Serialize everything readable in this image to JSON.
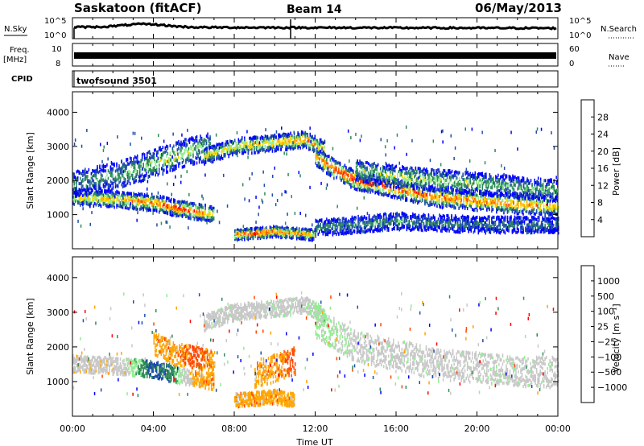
{
  "header": {
    "station": "Saskatoon (fitACF)",
    "beam": "Beam 14",
    "date": "06/May/2013"
  },
  "top_labels": {
    "nsky": "N.Sky",
    "nsearch": "N.Search",
    "freq": "Freq.",
    "mhz": "[MHz]",
    "nave": "Nave",
    "cpid": "CPID",
    "cpid_value": "twofsound 3501",
    "sky_ticks": [
      "10^5",
      "10^0"
    ],
    "freq_ticks": [
      "10",
      "8"
    ],
    "nave_ticks": [
      "60",
      "0"
    ]
  },
  "x_axis": {
    "label": "Time UT",
    "ticks": [
      "00:00",
      "04:00",
      "08:00",
      "12:00",
      "16:00",
      "20:00",
      "00:00"
    ]
  },
  "colors": {
    "power": [
      "#0000ff",
      "#1f4ea8",
      "#2e8b57",
      "#90ee90",
      "#ffd700",
      "#ffa500",
      "#ff4500",
      "#ff0000"
    ],
    "velocity": [
      "#ff0000",
      "#ff4500",
      "#ffa500",
      "#c8c8c8",
      "#c8c8c8",
      "#90ee90",
      "#2e8b57",
      "#1f4ea8",
      "#0000ff"
    ]
  },
  "chart_data": [
    {
      "type": "heatmap",
      "title": "",
      "xlabel": "Time UT",
      "ylabel": "Slant Range [km]",
      "xlim": [
        0,
        24
      ],
      "ylim": [
        0,
        4600
      ],
      "y_ticks": [
        "1000",
        "2000",
        "3000",
        "4000"
      ],
      "y_tick_values": [
        1000,
        2000,
        3000,
        4000
      ],
      "colorbar": {
        "label": "Power [dB]",
        "ticks": [
          "28",
          "24",
          "20",
          "16",
          "12",
          "8",
          "4"
        ],
        "range": [
          0,
          32
        ]
      },
      "bands": [
        {
          "t": [
            0,
            2,
            3,
            4,
            5,
            6,
            7
          ],
          "center": [
            1500,
            1450,
            1400,
            1350,
            1200,
            1100,
            1000
          ],
          "width": 300,
          "intensity": [
            0.5,
            0.6,
            0.7,
            0.75,
            0.85,
            0.8,
            0.5
          ]
        },
        {
          "t": [
            0,
            2,
            4,
            5.5,
            6.8
          ],
          "center": [
            1900,
            2100,
            2500,
            2800,
            3000
          ],
          "width": 500,
          "intensity": [
            0.3,
            0.3,
            0.45,
            0.5,
            0.4
          ]
        },
        {
          "t": [
            6.5,
            8,
            10,
            11.5,
            12.5
          ],
          "center": [
            2700,
            3000,
            3100,
            3200,
            2900
          ],
          "width": 300,
          "intensity": [
            0.5,
            0.55,
            0.6,
            0.75,
            0.55
          ]
        },
        {
          "t": [
            12,
            13,
            14,
            15,
            16,
            18,
            20,
            22,
            24
          ],
          "center": [
            2700,
            2300,
            2000,
            1900,
            1750,
            1500,
            1400,
            1300,
            1250
          ],
          "width": 350,
          "intensity": [
            0.6,
            0.85,
            0.9,
            0.85,
            0.8,
            0.75,
            0.75,
            0.7,
            0.65
          ]
        },
        {
          "t": [
            14,
            16,
            18,
            20,
            22,
            24
          ],
          "center": [
            2300,
            2100,
            2000,
            1900,
            1800,
            1700
          ],
          "width": 400,
          "intensity": [
            0.4,
            0.45,
            0.45,
            0.4,
            0.35,
            0.35
          ]
        },
        {
          "t": [
            8,
            9,
            10,
            11,
            12
          ],
          "center": [
            400,
            450,
            500,
            450,
            400
          ],
          "width": 200,
          "intensity": [
            0.8,
            0.85,
            0.75,
            0.7,
            0.6
          ]
        },
        {
          "t": [
            12,
            16,
            20,
            24
          ],
          "center": [
            600,
            800,
            700,
            700
          ],
          "width": 300,
          "intensity": [
            0.3,
            0.3,
            0.25,
            0.25
          ]
        }
      ]
    },
    {
      "type": "heatmap",
      "title": "",
      "xlabel": "Time UT",
      "ylabel": "Slant Range [km]",
      "xlim": [
        0,
        24
      ],
      "ylim": [
        0,
        4600
      ],
      "y_ticks": [
        "1000",
        "2000",
        "3000",
        "4000"
      ],
      "y_tick_values": [
        1000,
        2000,
        3000,
        4000
      ],
      "colorbar": {
        "label": "Velocity [m s⁻¹]",
        "ticks": [
          "1000",
          "500",
          "100",
          "25",
          "−25",
          "−100",
          "−500",
          "−1000"
        ]
      },
      "bands": [
        {
          "t": [
            0,
            2,
            3,
            4,
            5,
            6,
            7
          ],
          "center": [
            1500,
            1450,
            1400,
            1350,
            1200,
            1100,
            1000
          ],
          "width": 300,
          "vel_class": [
            3,
            3,
            5,
            7,
            6,
            2,
            2
          ]
        },
        {
          "t": [
            6.5,
            8,
            10,
            11.5,
            12.5
          ],
          "center": [
            2700,
            3000,
            3100,
            3200,
            2900
          ],
          "width": 300,
          "vel_class": [
            4,
            4,
            4,
            4,
            5
          ]
        },
        {
          "t": [
            12,
            14,
            16,
            18,
            20,
            22,
            24
          ],
          "center": [
            2700,
            2000,
            1750,
            1500,
            1400,
            1300,
            1250
          ],
          "width": 550,
          "vel_class": [
            5,
            4,
            4,
            4,
            4,
            4,
            4
          ]
        },
        {
          "t": [
            8,
            9,
            10,
            11
          ],
          "center": [
            450,
            500,
            550,
            450
          ],
          "width": 250,
          "vel_class": [
            2,
            2,
            2,
            2
          ]
        },
        {
          "t": [
            4,
            5,
            6,
            7
          ],
          "center": [
            2100,
            1800,
            1700,
            1600
          ],
          "width": 400,
          "vel_class": [
            2,
            2,
            1,
            2
          ]
        },
        {
          "t": [
            9,
            10,
            11
          ],
          "center": [
            1200,
            1400,
            1600
          ],
          "width": 500,
          "vel_class": [
            2,
            2,
            1
          ]
        }
      ]
    }
  ]
}
